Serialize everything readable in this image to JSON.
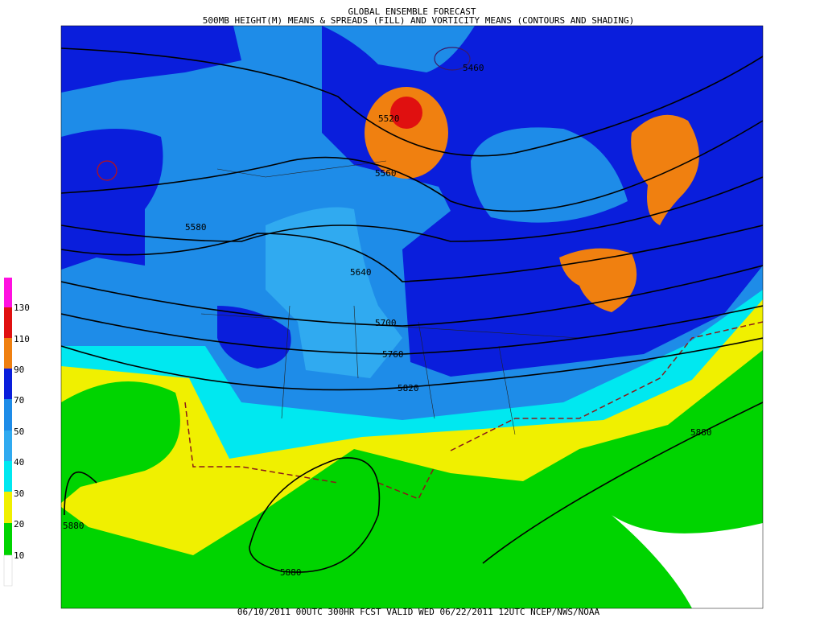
{
  "header": {
    "title": "GLOBAL ENSEMBLE FORECAST",
    "subtitle": "500MB HEIGHT(M) MEANS & SPREADS (FILL) AND VORTICITY MEANS (CONTOURS AND SHADING)"
  },
  "legend": {
    "labels": [
      "130",
      "110",
      "90",
      "70",
      "50",
      "40",
      "30",
      "20",
      "10"
    ]
  },
  "contour_labels": [
    "5460",
    "5520",
    "5560",
    "5580",
    "5640",
    "5700",
    "5760",
    "5820",
    "5880",
    "5880",
    "5880"
  ],
  "footer": "06/10/2011 00UTC 300HR FCST VALID WED 06/22/2011 12UTC  NCEP/NWS/NOAA"
}
